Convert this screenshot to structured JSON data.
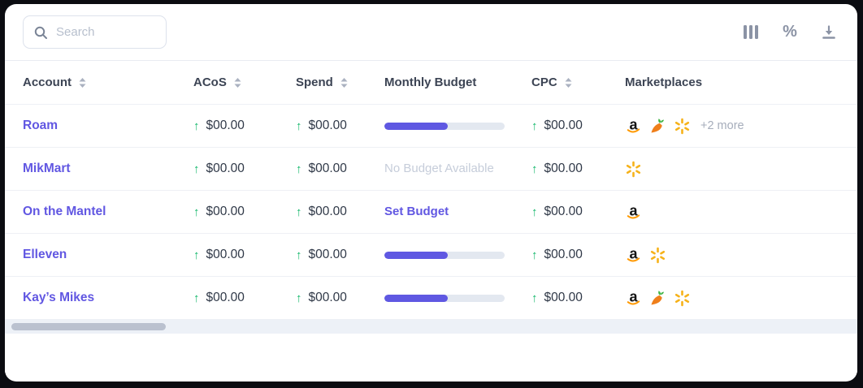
{
  "toolbar": {
    "search": {
      "placeholder": "Search"
    },
    "icons": [
      "columns-icon",
      "percent-icon",
      "download-icon"
    ],
    "percent_label": "%"
  },
  "table": {
    "headers": [
      "Account",
      "ACoS",
      "Spend",
      "Monthly Budget",
      "CPC",
      "Marketplaces"
    ],
    "sortable_headers": [
      "Account",
      "ACoS",
      "Spend",
      "CPC"
    ],
    "rows": [
      {
        "account": "Roam",
        "acos": "$00.00",
        "acos_trend": "up",
        "spend": "$00.00",
        "spend_trend": "up",
        "budget": {
          "type": "progress",
          "percent": 53
        },
        "cpc": "$00.00",
        "cpc_trend": "up",
        "marketplaces": [
          "amazon",
          "carrot",
          "walmart"
        ],
        "more": "+2 more"
      },
      {
        "account": "MikMart",
        "acos": "$00.00",
        "acos_trend": "up",
        "spend": "$00.00",
        "spend_trend": "up",
        "budget": {
          "type": "none",
          "label": "No Budget Available"
        },
        "cpc": "$00.00",
        "cpc_trend": "up",
        "marketplaces": [
          "walmart"
        ],
        "more": ""
      },
      {
        "account": "On the Mantel",
        "acos": "$00.00",
        "acos_trend": "up",
        "spend": "$00.00",
        "spend_trend": "up",
        "budget": {
          "type": "link",
          "label": "Set Budget"
        },
        "cpc": "$00.00",
        "cpc_trend": "up",
        "marketplaces": [
          "amazon"
        ],
        "more": ""
      },
      {
        "account": "Elleven",
        "acos": "$00.00",
        "acos_trend": "up",
        "spend": "$00.00",
        "spend_trend": "up",
        "budget": {
          "type": "progress",
          "percent": 53
        },
        "cpc": "$00.00",
        "cpc_trend": "up",
        "marketplaces": [
          "amazon",
          "walmart"
        ],
        "more": ""
      },
      {
        "account": "Kay’s Mikes",
        "acos": "$00.00",
        "acos_trend": "up",
        "spend": "$00.00",
        "spend_trend": "up",
        "budget": {
          "type": "progress",
          "percent": 53
        },
        "cpc": "$00.00",
        "cpc_trend": "up",
        "marketplaces": [
          "amazon",
          "carrot",
          "walmart"
        ],
        "more": ""
      }
    ]
  },
  "colors": {
    "accent": "#6157e2",
    "positive": "#12b76a",
    "progress_fill": "#5f58e2",
    "progress_track": "#e3e8f0",
    "muted_text": "#c6cdda",
    "icon_gray": "#8b93a5",
    "walmart_yellow": "#f6b21a",
    "amazon_orange": "#ff9900"
  }
}
